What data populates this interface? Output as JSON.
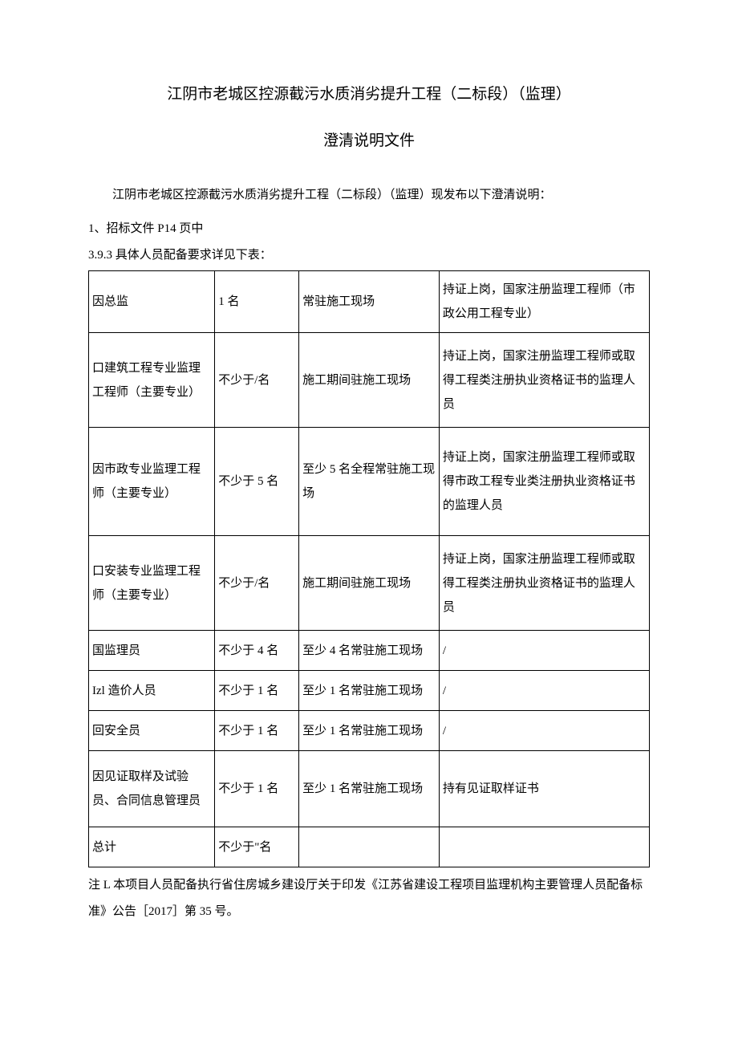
{
  "title": {
    "line1": "江阴市老城区控源截污水质消劣提升工程（二标段）（监理）",
    "line2": "澄清说明文件"
  },
  "intro": "江阴市老城区控源截污水质消劣提升工程（二标段）（监理）现发布以下澄清说明：",
  "item1": "1、招标文件 P14 页中",
  "section_heading": "3.9.3 具体人员配备要求详见下表：",
  "table": {
    "rows": [
      {
        "c1": "因总监",
        "c2": "1 名",
        "c3": "常驻施工现场",
        "c4": "持证上岗，国家注册监理工程师（市政公用工程专业）"
      },
      {
        "c1": "口建筑工程专业监理工程师（主要专业）",
        "c2": "不少于/名",
        "c3": "施工期间驻施工现场",
        "c4": "持证上岗，国家注册监理工程师或取得工程类注册执业资格证书的监理人员"
      },
      {
        "c1": "因市政专业监理工程师（主要专业）",
        "c2": "不少于 5 名",
        "c3": "至少 5 名全程常驻施工现场",
        "c4": "持证上岗，国家注册监理工程师或取得市政工程专业类注册执业资格证书的监理人员"
      },
      {
        "c1": "口安装专业监理工程师（主要专业）",
        "c2": "不少于/名",
        "c3": "施工期间驻施工现场",
        "c4": "持证上岗，国家注册监理工程师或取得工程类注册执业资格证书的监理人员"
      },
      {
        "c1": "国监理员",
        "c2": "不少于 4 名",
        "c3": "至少 4 名常驻施工现场",
        "c4": "/"
      },
      {
        "c1": "Izl 造价人员",
        "c2": "不少于 1 名",
        "c3": "至少 1 名常驻施工现场",
        "c4": "/"
      },
      {
        "c1": "回安全员",
        "c2": "不少于 1 名",
        "c3": "至少 1 名常驻施工现场",
        "c4": "/"
      },
      {
        "c1": "因见证取样及试验员、合同信息管理员",
        "c2": "不少于 1 名",
        "c3": "至少 1 名常驻施工现场",
        "c4": "持有见证取样证书"
      },
      {
        "c1": "总计",
        "c2": "不少于\"名",
        "c3": "",
        "c4": ""
      }
    ]
  },
  "footnote": "注 L 本项目人员配备执行省住房城乡建设厅关于印发《江苏省建设工程项目监理机构主要管理人员配备标准》公告［2017］第 35 号。"
}
